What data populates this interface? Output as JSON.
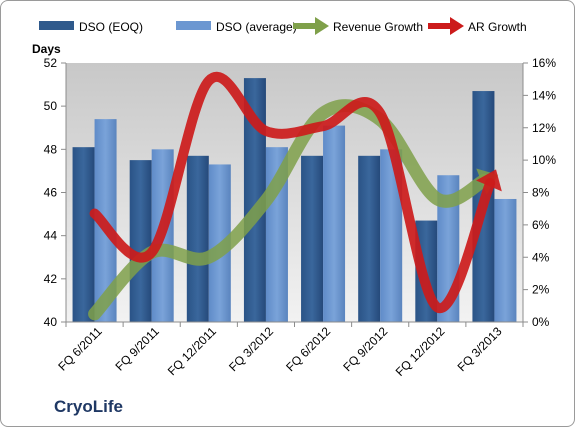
{
  "company": "CryoLife",
  "chart_data": {
    "type": "bar",
    "categories": [
      "FQ 6/2011",
      "FQ 9/2011",
      "FQ 12/2011",
      "FQ 3/2012",
      "FQ 6/2012",
      "FQ 9/2012",
      "FQ 12/2012",
      "FQ 3/2013"
    ],
    "y_left": {
      "label": "Days",
      "ylim": [
        40,
        52
      ],
      "ticks": [
        "40",
        "42",
        "44",
        "46",
        "48",
        "50",
        "52"
      ]
    },
    "y_right": {
      "ylim": [
        0,
        16
      ],
      "ticks": [
        "0%",
        "2%",
        "4%",
        "6%",
        "8%",
        "10%",
        "12%",
        "14%",
        "16%"
      ]
    },
    "series": [
      {
        "name": "DSO (EOQ)",
        "kind": "bar",
        "axis": "left",
        "color": "#2f5a8c",
        "values": [
          48.1,
          47.5,
          47.7,
          51.3,
          47.7,
          47.7,
          44.7,
          50.7
        ]
      },
      {
        "name": "DSO (average)",
        "kind": "bar",
        "axis": "left",
        "color": "#6c97d1",
        "values": [
          49.4,
          48.0,
          47.3,
          48.1,
          49.1,
          48.0,
          46.8,
          45.7
        ]
      },
      {
        "name": "Revenue Growth",
        "kind": "arrow-line",
        "axis": "right",
        "color": "#7fa04a",
        "values": [
          0.5,
          4.3,
          4.0,
          7.5,
          12.9,
          12.5,
          7.6,
          9.0
        ]
      },
      {
        "name": "AR Growth",
        "kind": "arrow-line",
        "axis": "right",
        "color": "#cc1b1b",
        "values": [
          6.7,
          4.3,
          14.9,
          11.8,
          12.1,
          12.9,
          0.9,
          9.2
        ]
      }
    ],
    "legend_position": "top",
    "grid": false,
    "plot_background": "#d9d9d9"
  }
}
